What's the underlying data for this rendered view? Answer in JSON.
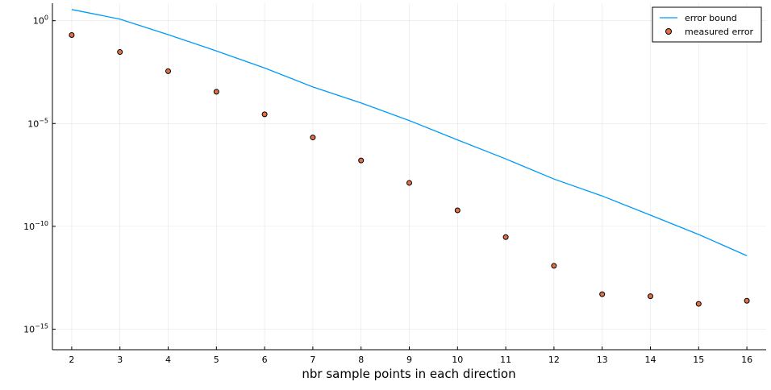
{
  "chart_data": {
    "type": "line",
    "title": "",
    "xlabel": "nbr sample points in each direction",
    "ylabel": "",
    "yscale": "log10",
    "grid": true,
    "legend_position": "top-right",
    "xlim": [
      1.6,
      16.4
    ],
    "ylim_log10": [
      -16.0,
      0.85
    ],
    "x_ticks": [
      2,
      3,
      4,
      5,
      6,
      7,
      8,
      9,
      10,
      11,
      12,
      13,
      14,
      15,
      16
    ],
    "x_tick_labels": [
      "2",
      "3",
      "4",
      "5",
      "6",
      "7",
      "8",
      "9",
      "10",
      "11",
      "12",
      "13",
      "14",
      "15",
      "16"
    ],
    "y_ticks": [
      {
        "base": "10",
        "exp": "0",
        "value": 1
      },
      {
        "base": "10",
        "exp": "−5",
        "value": 1e-05
      },
      {
        "base": "10",
        "exp": "−10",
        "value": 1e-10
      },
      {
        "base": "10",
        "exp": "−15",
        "value": 1e-15
      }
    ],
    "series": [
      {
        "name": "error bound",
        "kind": "line",
        "color": "#009af9",
        "x": [
          2,
          3,
          4,
          5,
          6,
          7,
          8,
          9,
          10,
          11,
          12,
          13,
          14,
          15,
          16
        ],
        "y": [
          3.5,
          1.2,
          0.21,
          0.034,
          0.005,
          0.0006,
          0.0001,
          1.4e-05,
          1.6e-06,
          1.9e-07,
          2e-08,
          3e-09,
          3.5e-10,
          4e-11,
          3.7e-12
        ]
      },
      {
        "name": "measured error",
        "kind": "scatter",
        "color": "#e26f46",
        "x": [
          2,
          3,
          4,
          5,
          6,
          7,
          8,
          9,
          10,
          11,
          12,
          13,
          14,
          15,
          16
        ],
        "y": [
          0.2,
          0.03,
          0.0035,
          0.00035,
          2.8e-05,
          2.1e-06,
          1.6e-07,
          1.3e-08,
          6e-10,
          3e-11,
          1.2e-12,
          5e-14,
          4e-14,
          1.7e-14,
          2.4e-14
        ]
      }
    ]
  }
}
